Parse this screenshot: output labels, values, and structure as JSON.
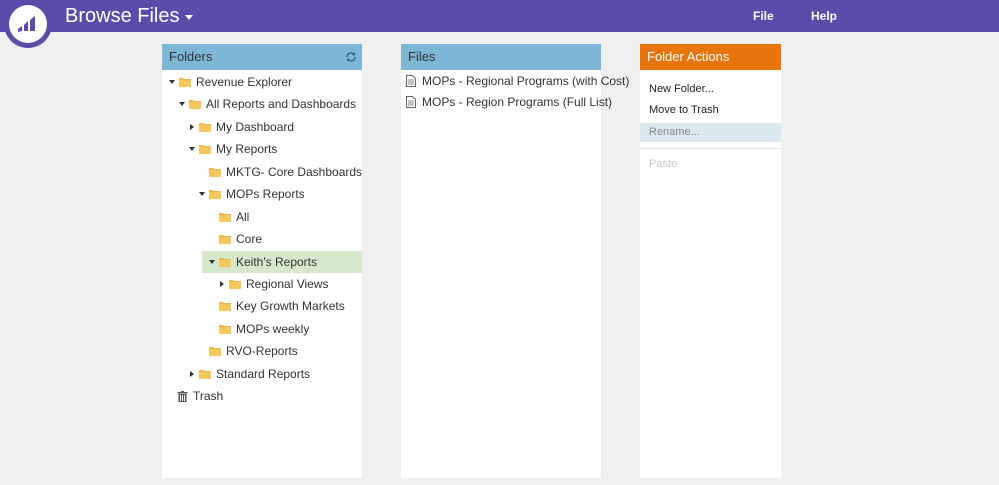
{
  "header": {
    "title": "Browse Files",
    "menu": [
      {
        "label": "File"
      },
      {
        "label": "Help"
      }
    ],
    "brand_color": "#5a4ca8"
  },
  "folders_panel": {
    "title": "Folders",
    "header_color": "#7db7d6",
    "tree": [
      {
        "label": "Revenue Explorer",
        "arrow": "down"
      },
      {
        "label": "All Reports and Dashboards",
        "arrow": "down"
      },
      {
        "label": "My Dashboard",
        "arrow": "right"
      },
      {
        "label": "My Reports",
        "arrow": "down"
      },
      {
        "label": "MKTG- Core Dashboards",
        "arrow": "none"
      },
      {
        "label": "MOPs Reports",
        "arrow": "down"
      },
      {
        "label": "All",
        "arrow": "none"
      },
      {
        "label": "Core",
        "arrow": "none"
      },
      {
        "label": "Keith's Reports",
        "arrow": "down",
        "selected": true
      },
      {
        "label": "Regional Views",
        "arrow": "right"
      },
      {
        "label": "Key Growth Markets",
        "arrow": "none"
      },
      {
        "label": "MOPs weekly",
        "arrow": "none"
      },
      {
        "label": "RVO-Reports",
        "arrow": "none"
      },
      {
        "label": "Standard Reports",
        "arrow": "right"
      },
      {
        "label": "Trash",
        "icon": "trash-icon"
      }
    ]
  },
  "files_panel": {
    "title": "Files",
    "files": [
      {
        "label": "MOPs - Regional Programs (with Cost)"
      },
      {
        "label": "MOPs - Region Programs (Full List)"
      }
    ]
  },
  "actions_panel": {
    "title": "Folder Actions",
    "header_color": "#e8750b",
    "items": [
      {
        "label": "New Folder...",
        "state": "enabled"
      },
      {
        "label": "Move to Trash",
        "state": "enabled"
      },
      {
        "label": "Rename...",
        "state": "disabled-highlight"
      },
      {
        "label": "Paste",
        "state": "disabled"
      }
    ]
  }
}
